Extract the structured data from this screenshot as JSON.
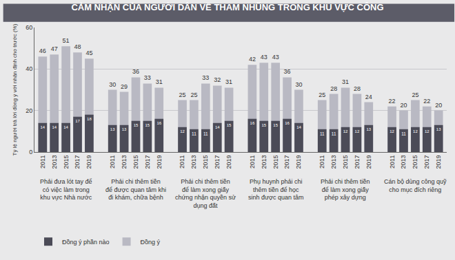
{
  "chart_data": {
    "type": "bar",
    "title": "CẢM NHẬN CỦA NGƯỜI DÂN VỀ THAM NHŨNG TRONG KHU VỰC CÔNG",
    "y_label": "Tỷ lệ người trả lời đồng ý với nhận định cho trước (%)",
    "groups": [
      "Phải đưa lót tay để có việc làm trong khu vực Nhà nước",
      "Phải chi thêm tiền để được quan tâm khi đi khám, chữa bệnh",
      "Phải chi thêm tiền để làm xong giấy chứng nhận quyền sử dụng đất",
      "Phụ huynh phải chi thêm tiền để học sinh được quan tâm",
      "Phải chi thêm tiền để làm xong giấy phép xây dựng",
      "Cán bộ dùng công quỹ cho mục đích riêng"
    ],
    "categories": [
      "2011",
      "2013",
      "2015",
      "2017",
      "2019",
      "2011",
      "2013",
      "2015",
      "2017",
      "2019",
      "2011",
      "2013",
      "2015",
      "2017",
      "2019",
      "2011",
      "2013",
      "2015",
      "2017",
      "2019",
      "2011",
      "2013",
      "2015",
      "2017",
      "2019",
      "2011",
      "2013",
      "2015",
      "2017",
      "2019"
    ],
    "series": [
      {
        "name": "Đồng ý",
        "color": "#b9b9c3",
        "values": [
          46,
          47,
          51,
          48,
          45,
          30,
          29,
          36,
          33,
          31,
          25,
          25,
          33,
          32,
          31,
          42,
          43,
          43,
          36,
          30,
          25,
          28,
          31,
          28,
          24,
          22,
          20,
          25,
          22,
          20
        ]
      },
      {
        "name": "Đồng ý phần nào",
        "color": "#4b4b57",
        "values": [
          14,
          14,
          14,
          17,
          18,
          13,
          13,
          15,
          15,
          16,
          12,
          11,
          11,
          14,
          15,
          16,
          15,
          15,
          16,
          14,
          11,
          11,
          12,
          12,
          13,
          12,
          11,
          12,
          12,
          13
        ]
      }
    ],
    "ylim": [
      0,
      60
    ],
    "yticks": [
      0,
      20,
      40,
      60
    ],
    "grid": true,
    "stacked": false,
    "data_labels": true,
    "legend": "bottom-left"
  }
}
